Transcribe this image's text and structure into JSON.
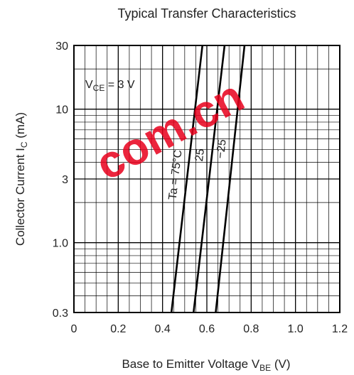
{
  "chart_data": {
    "type": "line",
    "title": "Typical Transfer Characteristics",
    "xlabel": {
      "main": "Base to Emitter Voltage  V",
      "sub": "BE",
      "unit": "  (V)"
    },
    "ylabel": {
      "main": "Collector Current  I",
      "sub": "C",
      "unit": "  (mA)"
    },
    "x_range": [
      0,
      1.2
    ],
    "y_range": [
      0.3,
      30
    ],
    "y_scale": "log",
    "grid": true,
    "x_ticks": [
      "0",
      "0.2",
      "0.4",
      "0.6",
      "0.8",
      "1.0",
      "1.2"
    ],
    "y_ticks": [
      {
        "value": 0.3,
        "label": "0.3"
      },
      {
        "value": 1.0,
        "label": "1.0"
      },
      {
        "value": 3,
        "label": "3"
      },
      {
        "value": 10,
        "label": "10"
      },
      {
        "value": 30,
        "label": "30"
      }
    ],
    "condition": {
      "main": "V",
      "sub": "CE",
      "rest": " = 3 V"
    },
    "series": [
      {
        "name": "Ta = 75°C",
        "x": [
          0.44,
          0.58
        ],
        "y": [
          0.3,
          30
        ]
      },
      {
        "name": "25",
        "x": [
          0.54,
          0.68
        ],
        "y": [
          0.3,
          30
        ]
      },
      {
        "name": "−25",
        "x": [
          0.64,
          0.77
        ],
        "y": [
          0.3,
          30
        ]
      }
    ]
  },
  "watermark_text": "com.cn"
}
